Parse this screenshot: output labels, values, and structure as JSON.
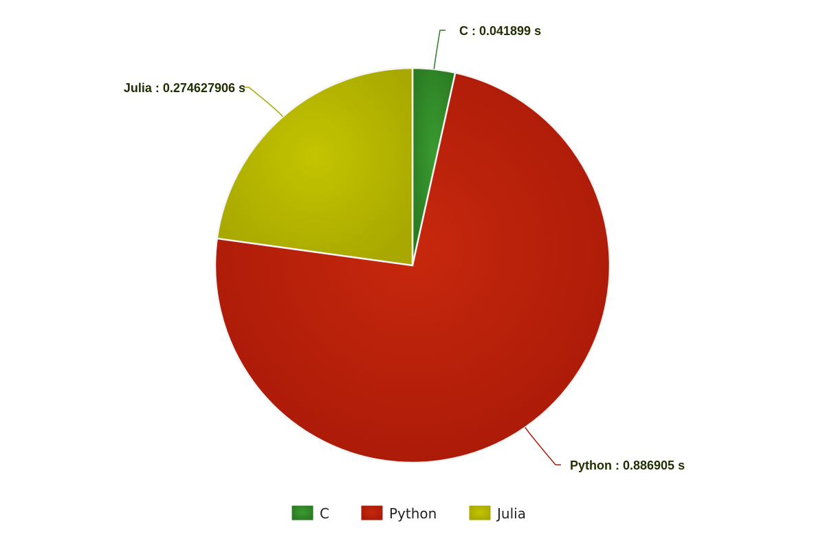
{
  "chart_data": {
    "type": "pie",
    "unit": "s",
    "series": [
      {
        "name": "C",
        "value": 0.041899,
        "label": "C : 0.041899 s",
        "color": "#3a9b30",
        "color_dark": "#2a7a22"
      },
      {
        "name": "Python",
        "value": 0.886905,
        "label": "Python : 0.886905 s",
        "color": "#c7280d",
        "color_dark": "#aa1a08"
      },
      {
        "name": "Julia",
        "value": 0.274627906,
        "label": "Julia : 0.274627906 s",
        "color": "#c4c400",
        "color_dark": "#a8a800"
      }
    ],
    "legend": {
      "position": "bottom",
      "items": [
        "C",
        "Python",
        "Julia"
      ]
    },
    "start_angle_deg": 0,
    "direction": "clockwise"
  }
}
